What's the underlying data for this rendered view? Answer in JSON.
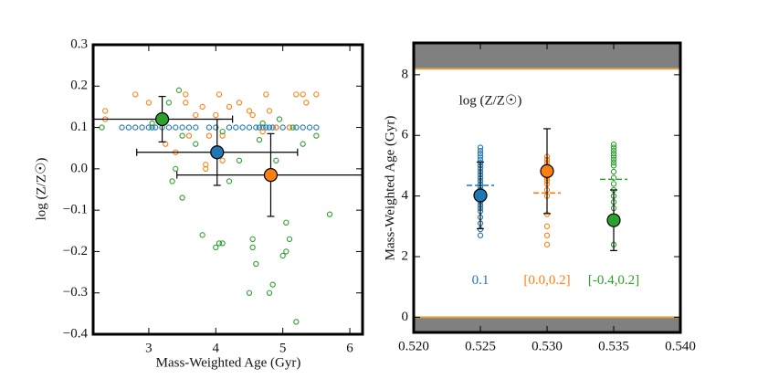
{
  "chart_data": [
    {
      "type": "scatter",
      "xlabel": "Mass-Weighted Age (Gyr)",
      "ylabel": "log (Z/Z☉)",
      "xlim": [
        2.17,
        6.19
      ],
      "ylim": [
        -0.4,
        0.3
      ],
      "xticks": [
        3,
        4,
        5,
        6
      ],
      "yticks": [
        0.3,
        0.2,
        0.1,
        {
          "value": 0,
          "label": "0.0"
        },
        {
          "value": -0.1,
          "label": "−0.1"
        },
        {
          "value": -0.2,
          "label": "−0.2"
        },
        {
          "value": -0.3,
          "label": "−0.3"
        },
        {
          "value": -0.4,
          "label": "−0.4"
        }
      ],
      "series": [
        {
          "color": "#1f77b4",
          "x": [
            2.6,
            2.7,
            2.8,
            2.9,
            3.0,
            3.05,
            3.1,
            3.2,
            3.3,
            3.4,
            3.5,
            3.6,
            3.7,
            3.9,
            4.0,
            4.2,
            4.3,
            4.4,
            4.5,
            4.6,
            4.65,
            4.7,
            4.75,
            4.8,
            4.85,
            4.9,
            5.0,
            5.1,
            5.2,
            5.3,
            5.4,
            5.5
          ],
          "values": [
            0.1,
            0.1,
            0.1,
            0.1,
            0.1,
            0.1,
            0.1,
            0.1,
            0.1,
            0.1,
            0.1,
            0.1,
            0.1,
            0.1,
            0.1,
            0.1,
            0.1,
            0.1,
            0.1,
            0.1,
            0.1,
            0.1,
            0.1,
            0.1,
            0.1,
            0.1,
            0.1,
            0.1,
            0.1,
            0.1,
            0.1,
            0.1
          ],
          "summary": {
            "x": 4.02,
            "value": 0.04,
            "xerr": 1.2,
            "yerr": 0.08
          }
        },
        {
          "color": "#ff7f0e",
          "x": [
            2.35,
            2.35,
            2.8,
            3.0,
            3.25,
            3.4,
            3.55,
            3.55,
            3.6,
            3.7,
            3.8,
            3.85,
            3.9,
            4.0,
            4.05,
            4.1,
            4.1,
            4.2,
            4.35,
            4.5,
            4.55,
            4.75,
            4.8,
            4.9,
            5.1,
            5.2,
            5.3,
            5.35,
            5.5,
            3.85,
            4.7
          ],
          "values": [
            0.14,
            0.12,
            0.18,
            0.16,
            0.06,
            0.04,
            0.18,
            0.16,
            0.08,
            0.13,
            0.15,
            0.01,
            0.08,
            0.13,
            0.18,
            0.08,
            0.02,
            0.15,
            0.16,
            0.14,
            0.13,
            0.18,
            0.14,
            0.1,
            0.1,
            0.18,
            0.18,
            0.16,
            0.18,
            0.0,
            0.09
          ],
          "summary": {
            "x": 4.82,
            "value": -0.015,
            "xerr": 1.4,
            "yerr": 0.1
          }
        },
        {
          "color": "#2ca02c",
          "x": [
            2.3,
            3.05,
            3.3,
            3.45,
            3.5,
            3.7,
            3.5,
            3.35,
            3.4,
            3.8,
            4.0,
            4.05,
            4.1,
            4.1,
            4.2,
            4.35,
            4.5,
            4.55,
            4.55,
            4.6,
            4.65,
            4.7,
            4.8,
            4.85,
            4.95,
            5.0,
            5.05,
            5.05,
            5.1,
            5.15,
            5.2,
            5.3,
            5.5,
            5.7,
            4.9
          ],
          "values": [
            0.1,
            0.11,
            0.16,
            0.19,
            0.08,
            0.06,
            -0.07,
            -0.03,
            0.0,
            -0.16,
            -0.19,
            -0.18,
            0.09,
            -0.18,
            -0.03,
            0.02,
            -0.3,
            -0.19,
            -0.17,
            -0.23,
            0.07,
            0.11,
            -0.3,
            -0.28,
            0.12,
            -0.21,
            -0.13,
            -0.2,
            -0.17,
            0.1,
            -0.37,
            0.06,
            0.08,
            -0.11,
            0.02
          ],
          "summary": {
            "x": 3.2,
            "value": 0.12,
            "xerr": 1.05,
            "yerr": 0.055
          }
        }
      ]
    },
    {
      "type": "strip",
      "ylabel": "Mass-Weighted Age (Gyr)",
      "annotation": "log (Z/Z☉)",
      "xlim": [
        0.52,
        0.54
      ],
      "ylim": [
        -0.5,
        9.05
      ],
      "xticks": [
        {
          "value": 0.52,
          "label": "0.520"
        },
        0.525,
        {
          "value": 0.53,
          "label": "0.530"
        },
        0.535,
        {
          "value": 0.54,
          "label": "0.540"
        }
      ],
      "yticks": [
        0,
        2,
        4,
        6,
        8
      ],
      "bands": [
        [
          8.2,
          9.05
        ],
        [
          -0.5,
          0.0
        ]
      ],
      "series": [
        {
          "name": "0.1",
          "color": "#1f77b4",
          "x": 0.525,
          "values": [
            2.7,
            2.9,
            3.1,
            3.3,
            3.5,
            3.6,
            3.7,
            3.8,
            3.9,
            4.0,
            4.1,
            4.2,
            4.3,
            4.4,
            4.5,
            4.6,
            4.7,
            4.8,
            4.9,
            5.0,
            5.1,
            5.2,
            5.3,
            5.4,
            5.5,
            5.6
          ],
          "dashed": 4.35,
          "summary": {
            "value": 4.02,
            "yerr": 1.1
          }
        },
        {
          "name": "[0.0,0.2]",
          "color": "#ff7f0e",
          "x": 0.53,
          "values": [
            2.4,
            2.7,
            3.0,
            3.4,
            4.0,
            4.2,
            4.4,
            4.5,
            4.6,
            4.7,
            4.8,
            4.9,
            5.0,
            5.1,
            5.2,
            5.3
          ],
          "dashed": 4.1,
          "summary": {
            "value": 4.82,
            "yerr": 1.4
          }
        },
        {
          "name": "[-0.4,0.2]",
          "color": "#2ca02c",
          "x": 0.535,
          "values": [
            2.4,
            3.3,
            3.6,
            3.8,
            4.0,
            4.2,
            4.4,
            4.6,
            4.8,
            5.0,
            5.1,
            5.2,
            5.3,
            5.4,
            5.5,
            5.6,
            5.7
          ],
          "dashed": 4.55,
          "summary": {
            "value": 3.2,
            "yerr": 1.0
          }
        }
      ]
    }
  ]
}
